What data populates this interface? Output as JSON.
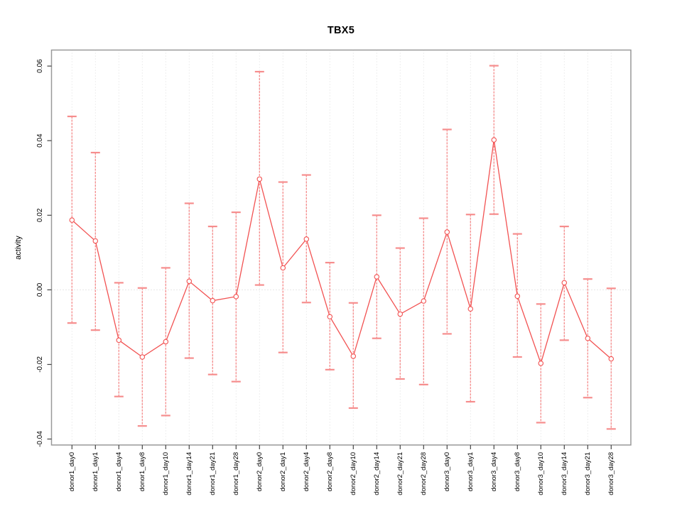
{
  "figure": {
    "title": "TBX5",
    "y_axis_title": "activity"
  },
  "chart_data": {
    "type": "line",
    "title": "TBX5",
    "xlabel": "",
    "ylabel": "activity",
    "legend": "none",
    "grid": {
      "vertical_dotted_per_category": true,
      "dotted_zero_line": true
    },
    "ylim": [
      -0.0416,
      0.0643
    ],
    "ytick_values": [
      -0.04,
      -0.02,
      0.0,
      0.02,
      0.04,
      0.06
    ],
    "ytick_labels": [
      "-0.04",
      "-0.02",
      "0.00",
      "0.02",
      "0.04",
      "0.06"
    ],
    "categories": [
      "donor1_day0",
      "donor1_day1",
      "donor1_day4",
      "donor1_day8",
      "donor1_day10",
      "donor1_day14",
      "donor1_day21",
      "donor1_day28",
      "donor2_day0",
      "donor2_day1",
      "donor2_day4",
      "donor2_day8",
      "donor2_day10",
      "donor2_day14",
      "donor2_day21",
      "donor2_day28",
      "donor3_day0",
      "donor3_day1",
      "donor3_day4",
      "donor3_day8",
      "donor3_day10",
      "donor3_day14",
      "donor3_day21",
      "donor3_day28"
    ],
    "series": [
      {
        "name": "activity",
        "values": [
          0.0187,
          0.0131,
          -0.0135,
          -0.018,
          -0.0139,
          0.0023,
          -0.0029,
          -0.0018,
          0.0297,
          0.0059,
          0.0136,
          -0.0072,
          -0.0178,
          0.0035,
          -0.0065,
          -0.003,
          0.0155,
          -0.0051,
          0.0402,
          -0.0017,
          -0.0197,
          0.0019,
          -0.013,
          -0.0185
        ]
      }
    ],
    "error_upper": [
      0.0465,
      0.0368,
      0.0019,
      0.0005,
      0.0059,
      0.0232,
      0.017,
      0.0208,
      0.0585,
      0.0289,
      0.0308,
      0.0073,
      -0.0035,
      0.02,
      0.0112,
      0.0192,
      0.043,
      0.0202,
      0.0601,
      0.015,
      -0.0038,
      0.017,
      0.0029,
      0.0004
    ],
    "error_lower": [
      -0.0089,
      -0.0108,
      -0.0286,
      -0.0365,
      -0.0337,
      -0.0183,
      -0.0227,
      -0.0246,
      0.0013,
      -0.0168,
      -0.0034,
      -0.0214,
      -0.0317,
      -0.013,
      -0.0239,
      -0.0254,
      -0.0118,
      -0.03,
      0.0203,
      -0.018,
      -0.0356,
      -0.0135,
      -0.0289,
      -0.0373
    ],
    "colors": {
      "line": "#f25252",
      "point_stroke": "#f25252",
      "point_fill": "#ffffff",
      "errorbar": "#f68d8d",
      "grid": "#dcdcdc",
      "zero_line": "#cfcfcf",
      "box": "#999999",
      "tick": "#444444",
      "text": "#000000"
    }
  }
}
